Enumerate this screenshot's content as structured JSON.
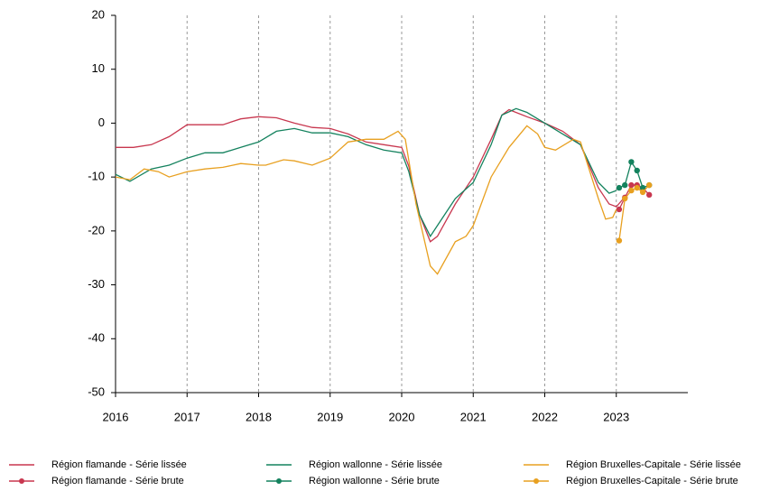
{
  "chart_data": {
    "type": "line",
    "xlim": [
      2016,
      2024
    ],
    "xticks": [
      2016,
      2017,
      2018,
      2019,
      2020,
      2021,
      2022,
      2023
    ],
    "ylim": [
      -50,
      20
    ],
    "yticks": [
      -50,
      -40,
      -30,
      -20,
      -10,
      0,
      10,
      20
    ],
    "grid": "x",
    "series": [
      {
        "name": "Région flamande - Série lissée",
        "color": "#c8374f",
        "marker": false,
        "x": [
          2016.0,
          2016.25,
          2016.5,
          2016.75,
          2017.0,
          2017.25,
          2017.5,
          2017.75,
          2018.0,
          2018.25,
          2018.5,
          2018.75,
          2019.0,
          2019.25,
          2019.5,
          2019.75,
          2020.0,
          2020.1,
          2020.25,
          2020.4,
          2020.5,
          2020.75,
          2021.0,
          2021.25,
          2021.4,
          2021.5,
          2021.75,
          2022.0,
          2022.25,
          2022.5,
          2022.75,
          2022.9,
          2023.0,
          2023.1
        ],
        "values": [
          -4.5,
          -4.5,
          -4,
          -2.5,
          -0.3,
          -0.3,
          -0.3,
          0.8,
          1.2,
          1,
          0,
          -0.8,
          -1,
          -2,
          -3.5,
          -4,
          -4.5,
          -8,
          -17,
          -22,
          -21,
          -15,
          -10,
          -3,
          1.5,
          2.5,
          1.2,
          0,
          -1.5,
          -4,
          -12,
          -15,
          -15.5,
          -14
        ]
      },
      {
        "name": "Région flamande - Série brute",
        "color": "#c8374f",
        "marker": true,
        "x": [
          2023.04,
          2023.12,
          2023.21,
          2023.29,
          2023.37,
          2023.46
        ],
        "values": [
          -16,
          -13.8,
          -11.5,
          -11.5,
          -12,
          -13.3
        ]
      },
      {
        "name": "Région wallonne - Série lissée",
        "color": "#14825e",
        "marker": false,
        "x": [
          2016.0,
          2016.2,
          2016.5,
          2016.75,
          2017.0,
          2017.25,
          2017.5,
          2017.75,
          2018.0,
          2018.25,
          2018.5,
          2018.75,
          2019.0,
          2019.25,
          2019.5,
          2019.75,
          2020.0,
          2020.1,
          2020.25,
          2020.4,
          2020.5,
          2020.75,
          2021.0,
          2021.25,
          2021.4,
          2021.6,
          2021.75,
          2022.0,
          2022.25,
          2022.5,
          2022.75,
          2022.9,
          2023.0
        ],
        "values": [
          -9.5,
          -10.8,
          -8.5,
          -7.8,
          -6.5,
          -5.5,
          -5.5,
          -4.5,
          -3.5,
          -1.5,
          -1,
          -1.8,
          -1.8,
          -2.5,
          -4,
          -5,
          -5.5,
          -9,
          -17,
          -21,
          -19,
          -14,
          -11,
          -4,
          1.5,
          2.7,
          2,
          0,
          -2,
          -4,
          -11,
          -13,
          -12.5
        ]
      },
      {
        "name": "Région wallonne - Série brute",
        "color": "#14825e",
        "marker": true,
        "x": [
          2023.04,
          2023.12,
          2023.21,
          2023.29,
          2023.37,
          2023.46
        ],
        "values": [
          -12,
          -11.5,
          -7.2,
          -8.8,
          -12,
          -11.5
        ]
      },
      {
        "name": "Région Bruxelles-Capitale - Série lissée",
        "color": "#e8a020",
        "marker": false,
        "x": [
          2016.0,
          2016.2,
          2016.4,
          2016.6,
          2016.75,
          2017.0,
          2017.25,
          2017.5,
          2017.75,
          2018.0,
          2018.1,
          2018.35,
          2018.5,
          2018.75,
          2019.0,
          2019.25,
          2019.5,
          2019.75,
          2019.95,
          2020.05,
          2020.2,
          2020.4,
          2020.5,
          2020.75,
          2020.9,
          2021.0,
          2021.25,
          2021.5,
          2021.75,
          2021.9,
          2022.0,
          2022.15,
          2022.4,
          2022.5,
          2022.75,
          2022.85,
          2022.95,
          2023.0
        ],
        "values": [
          -10,
          -10.5,
          -8.5,
          -9,
          -10,
          -9,
          -8.5,
          -8.2,
          -7.5,
          -7.8,
          -7.8,
          -6.8,
          -7,
          -7.8,
          -6.5,
          -3.5,
          -3,
          -3,
          -1.5,
          -3,
          -15,
          -26.5,
          -28,
          -22,
          -21,
          -19,
          -10,
          -4.5,
          -0.5,
          -2,
          -4.5,
          -5,
          -3,
          -3.5,
          -14,
          -17.8,
          -17.5,
          -16
        ]
      },
      {
        "name": "Région Bruxelles-Capitale - Série brute",
        "color": "#e8a020",
        "marker": true,
        "x": [
          2023.04,
          2023.12,
          2023.21,
          2023.29,
          2023.37,
          2023.46
        ],
        "values": [
          -21.8,
          -14,
          -12.5,
          -12,
          -12.8,
          -11.5
        ]
      }
    ]
  }
}
